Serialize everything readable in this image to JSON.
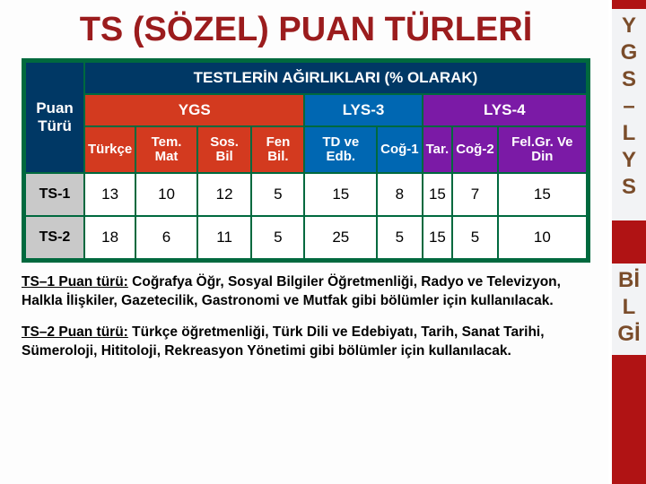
{
  "title": "TS (SÖZEL) PUAN TÜRLERİ",
  "rightStrip": {
    "color": "#b01314"
  },
  "rightBadge1": {
    "lines": [
      "Y",
      "G",
      "S",
      "–",
      "L",
      "Y",
      "S"
    ],
    "bg": "#f2f3f5",
    "fg": "#7a4c2a"
  },
  "rightBadge2": {
    "lines": [
      "Bİ",
      "L",
      "Gİ"
    ],
    "bg": "#f2f3f5",
    "fg": "#7a4c2a"
  },
  "table": {
    "topHeader": "TESTLERİN AĞIRLIKLARI (% OLARAK)",
    "rowHeader": "Puan Türü",
    "groups": [
      {
        "label": "YGS",
        "color": "#d33a1f",
        "span": 4
      },
      {
        "label": "LYS-3",
        "color": "#0067b2",
        "span": 2
      },
      {
        "label": "LYS-4",
        "color": "#7b1aa6",
        "span": 3
      }
    ],
    "subHeaders": [
      {
        "label": "Türkçe",
        "color": "#d33a1f"
      },
      {
        "label": "Tem. Mat",
        "color": "#d33a1f"
      },
      {
        "label": "Sos. Bil",
        "color": "#d33a1f"
      },
      {
        "label": "Fen Bil.",
        "color": "#d33a1f"
      },
      {
        "label": "TD ve Edb.",
        "color": "#0067b2"
      },
      {
        "label": "Coğ-1",
        "color": "#0067b2"
      },
      {
        "label": "Tar.",
        "color": "#7b1aa6"
      },
      {
        "label": "Coğ-2",
        "color": "#7b1aa6"
      },
      {
        "label": "Fel.Gr. Ve Din",
        "color": "#7b1aa6"
      }
    ],
    "rows": [
      {
        "label": "TS-1",
        "values": [
          "13",
          "10",
          "12",
          "5",
          "15",
          "8",
          "15",
          "7",
          "15"
        ]
      },
      {
        "label": "TS-2",
        "values": [
          "18",
          "6",
          "11",
          "5",
          "25",
          "5",
          "15",
          "5",
          "10"
        ]
      }
    ]
  },
  "desc1": {
    "lead": "TS–1 Puan türü:",
    "body": " Coğrafya Öğr, Sosyal Bilgiler Öğretmenliği, Radyo ve Televizyon, Halkla İlişkiler, Gazetecilik, Gastronomi ve Mutfak gibi bölümler için kullanılacak."
  },
  "desc2": {
    "lead": "TS–2 Puan türü:",
    "body": " Türkçe öğretmenliği, Türk Dili ve Edebiyatı, Tarih, Sanat Tarihi, Sümeroloji, Hititoloji, Rekreasyon Yönetimi gibi bölümler için kullanılacak."
  }
}
